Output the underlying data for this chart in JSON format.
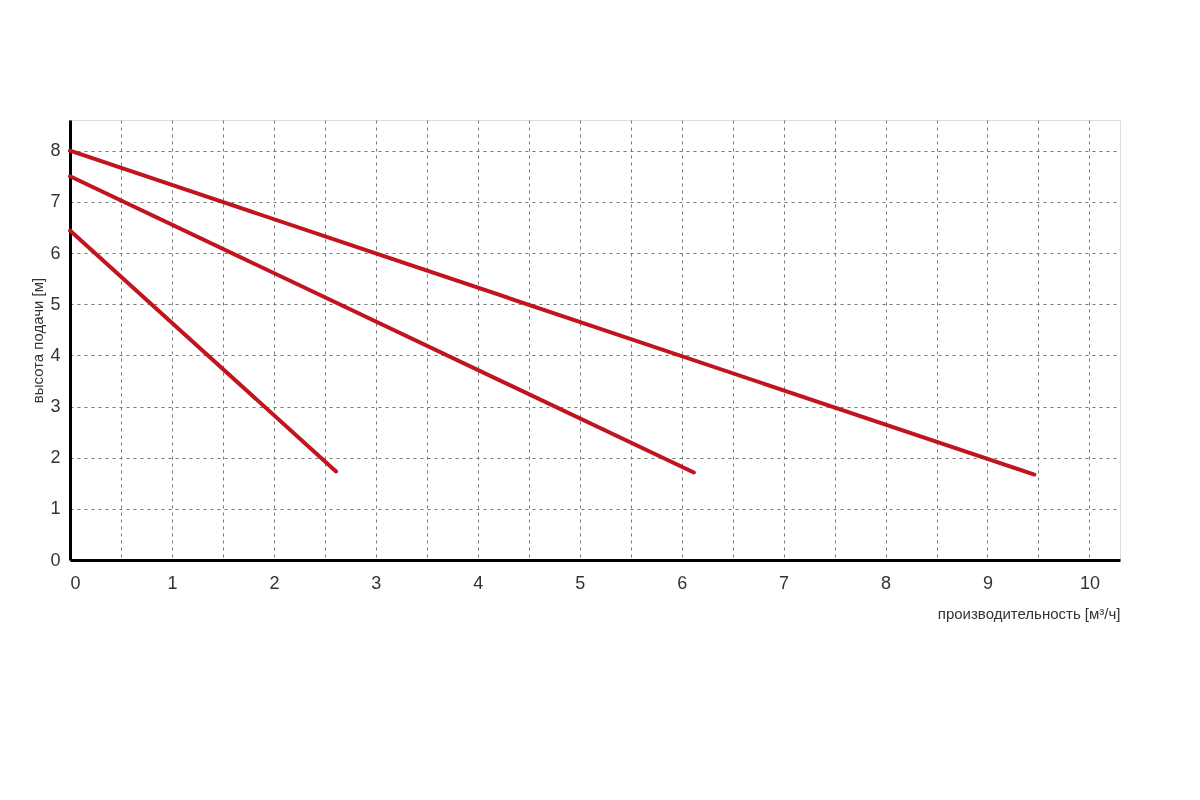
{
  "chart_data": {
    "type": "line",
    "xlabel": "производительность [м³/ч]",
    "ylabel": "высота подачи [м]",
    "xlim": [
      0,
      10.3
    ],
    "ylim": [
      0,
      8.6
    ],
    "xticks": [
      0,
      {
        "value": 0.5,
        "label": null
      },
      1,
      {
        "value": 1.5,
        "label": null
      },
      2,
      {
        "value": 2.5,
        "label": null
      },
      3,
      {
        "value": 3.5,
        "label": null
      },
      4,
      {
        "value": 4.5,
        "label": null
      },
      5,
      {
        "value": 5.5,
        "label": null
      },
      6,
      {
        "value": 6.5,
        "label": null
      },
      7,
      {
        "value": 7.5,
        "label": null
      },
      8,
      {
        "value": 8.5,
        "label": null
      },
      9,
      {
        "value": 9.5,
        "label": null
      },
      10
    ],
    "yticks": [
      0,
      1,
      2,
      3,
      4,
      5,
      6,
      7,
      8
    ],
    "grid": true,
    "marker": "none",
    "line_style": "solid",
    "series": [
      {
        "color": "#c0151f",
        "x": [
          0,
          9.46
        ],
        "values": [
          8.0,
          1.67
        ]
      },
      {
        "color": "#c0151f",
        "x": [
          0,
          6.12
        ],
        "values": [
          7.5,
          1.71
        ]
      },
      {
        "color": "#c0151f",
        "x": [
          0,
          2.61
        ],
        "values": [
          6.44,
          1.73
        ]
      }
    ]
  }
}
